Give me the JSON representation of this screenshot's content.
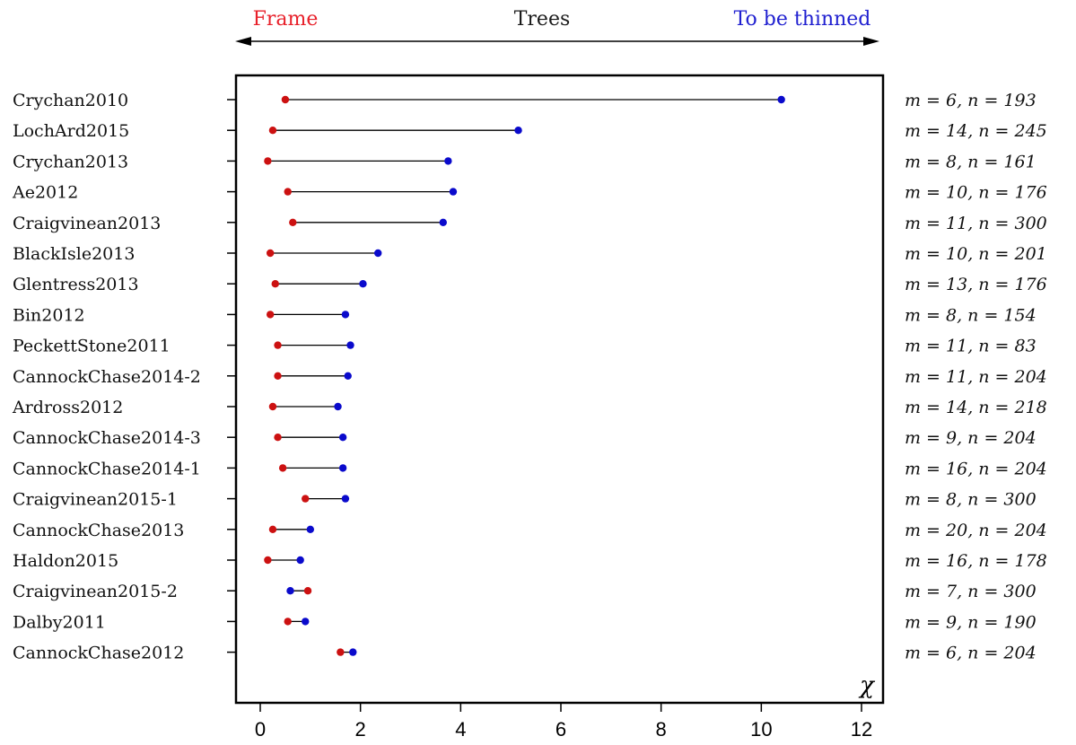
{
  "header": {
    "left_label": "Frame",
    "center_label": "Trees",
    "right_label": "To be thinned",
    "left_color": "#e8202a",
    "center_color": "#1a1a1a",
    "right_color": "#2020d0"
  },
  "chart_data": {
    "type": "dumbbell",
    "x_label": "χ",
    "x_ticks": [
      "0",
      "2",
      "4",
      "6",
      "8",
      "10",
      "12"
    ],
    "xlim": [
      -0.5,
      12.5
    ],
    "grid": false,
    "series": [
      {
        "name": "Frame",
        "color": "#cc1111"
      },
      {
        "name": "To be thinned",
        "color": "#0a0acc"
      }
    ],
    "rows": [
      {
        "label": "Crychan2010",
        "frame": 0.5,
        "thinned": 10.4,
        "annotation": "m = 6, n = 193"
      },
      {
        "label": "LochArd2015",
        "frame": 0.25,
        "thinned": 5.15,
        "annotation": "m = 14, n = 245"
      },
      {
        "label": "Crychan2013",
        "frame": 0.15,
        "thinned": 3.75,
        "annotation": "m = 8, n = 161"
      },
      {
        "label": "Ae2012",
        "frame": 0.55,
        "thinned": 3.85,
        "annotation": "m = 10, n = 176"
      },
      {
        "label": "Craigvinean2013",
        "frame": 0.65,
        "thinned": 3.65,
        "annotation": "m = 11, n = 300"
      },
      {
        "label": "BlackIsle2013",
        "frame": 0.2,
        "thinned": 2.35,
        "annotation": "m = 10, n = 201"
      },
      {
        "label": "Glentress2013",
        "frame": 0.3,
        "thinned": 2.05,
        "annotation": "m = 13, n = 176"
      },
      {
        "label": "Bin2012",
        "frame": 0.2,
        "thinned": 1.7,
        "annotation": "m = 8, n = 154"
      },
      {
        "label": "PeckettStone2011",
        "frame": 0.35,
        "thinned": 1.8,
        "annotation": "m = 11, n = 83"
      },
      {
        "label": "CannockChase2014-2",
        "frame": 0.35,
        "thinned": 1.75,
        "annotation": "m = 11, n = 204"
      },
      {
        "label": "Ardross2012",
        "frame": 0.25,
        "thinned": 1.55,
        "annotation": "m = 14, n = 218"
      },
      {
        "label": "CannockChase2014-3",
        "frame": 0.35,
        "thinned": 1.65,
        "annotation": "m = 9, n = 204"
      },
      {
        "label": "CannockChase2014-1",
        "frame": 0.45,
        "thinned": 1.65,
        "annotation": "m = 16, n = 204"
      },
      {
        "label": "Craigvinean2015-1",
        "frame": 0.9,
        "thinned": 1.7,
        "annotation": "m = 8, n = 300"
      },
      {
        "label": "CannockChase2013",
        "frame": 0.25,
        "thinned": 1.0,
        "annotation": "m = 20, n = 204"
      },
      {
        "label": "Haldon2015",
        "frame": 0.15,
        "thinned": 0.8,
        "annotation": "m = 16, n = 178"
      },
      {
        "label": "Craigvinean2015-2",
        "frame": 0.95,
        "thinned": 0.6,
        "annotation": "m = 7, n = 300"
      },
      {
        "label": "Dalby2011",
        "frame": 0.55,
        "thinned": 0.9,
        "annotation": "m = 9, n = 190"
      },
      {
        "label": "CannockChase2012",
        "frame": 1.6,
        "thinned": 1.85,
        "annotation": "m = 6, n = 204"
      }
    ]
  }
}
